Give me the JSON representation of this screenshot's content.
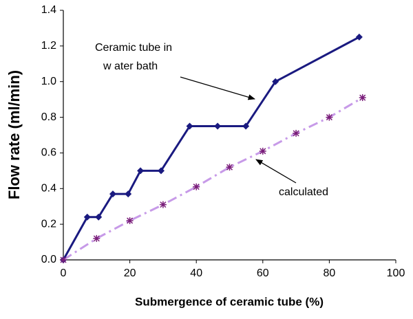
{
  "chart_data": {
    "type": "line",
    "xlabel": "Submergence of ceramic tube (%)",
    "ylabel": "Flow rate (ml/min)",
    "xlim": [
      0,
      100
    ],
    "xticks": [
      0,
      20,
      40,
      60,
      80,
      100
    ],
    "ylim": [
      0,
      1.4
    ],
    "yticks": [
      {
        "value": 0,
        "label": "0.0"
      },
      {
        "value": 0.2,
        "label": "0.2"
      },
      {
        "value": 0.4,
        "label": "0.4"
      },
      {
        "value": 0.6,
        "label": "0.6"
      },
      {
        "value": 0.8,
        "label": "0.8"
      },
      {
        "value": 1.0,
        "label": "1.0"
      },
      {
        "value": 1.2,
        "label": "1.2"
      },
      {
        "value": 1.4,
        "label": "1.4"
      }
    ],
    "series": [
      {
        "color": "#1a1a80",
        "marker": "diamond",
        "dashed": false,
        "x": [
          0,
          7.2,
          10.6,
          14.9,
          19.5,
          23.2,
          29.4,
          38,
          46.4,
          54.9,
          63.8,
          89
        ],
        "values": [
          0,
          0.24,
          0.24,
          0.37,
          0.37,
          0.5,
          0.5,
          0.75,
          0.75,
          0.75,
          1.0,
          1.25
        ]
      },
      {
        "color": "#c79ae8",
        "marker_color": "#7a1e7a",
        "marker": "asterisk",
        "dashed": true,
        "x": [
          0,
          10,
          20,
          30,
          40,
          50,
          60,
          70,
          80,
          90
        ],
        "values": [
          0,
          0.12,
          0.22,
          0.31,
          0.41,
          0.52,
          0.61,
          0.71,
          0.8,
          0.91
        ]
      }
    ],
    "annotations": [
      {
        "lines": [
          "Ceramic tube in",
          "w ater bath"
        ]
      },
      {
        "lines": [
          "calculated"
        ]
      }
    ]
  }
}
